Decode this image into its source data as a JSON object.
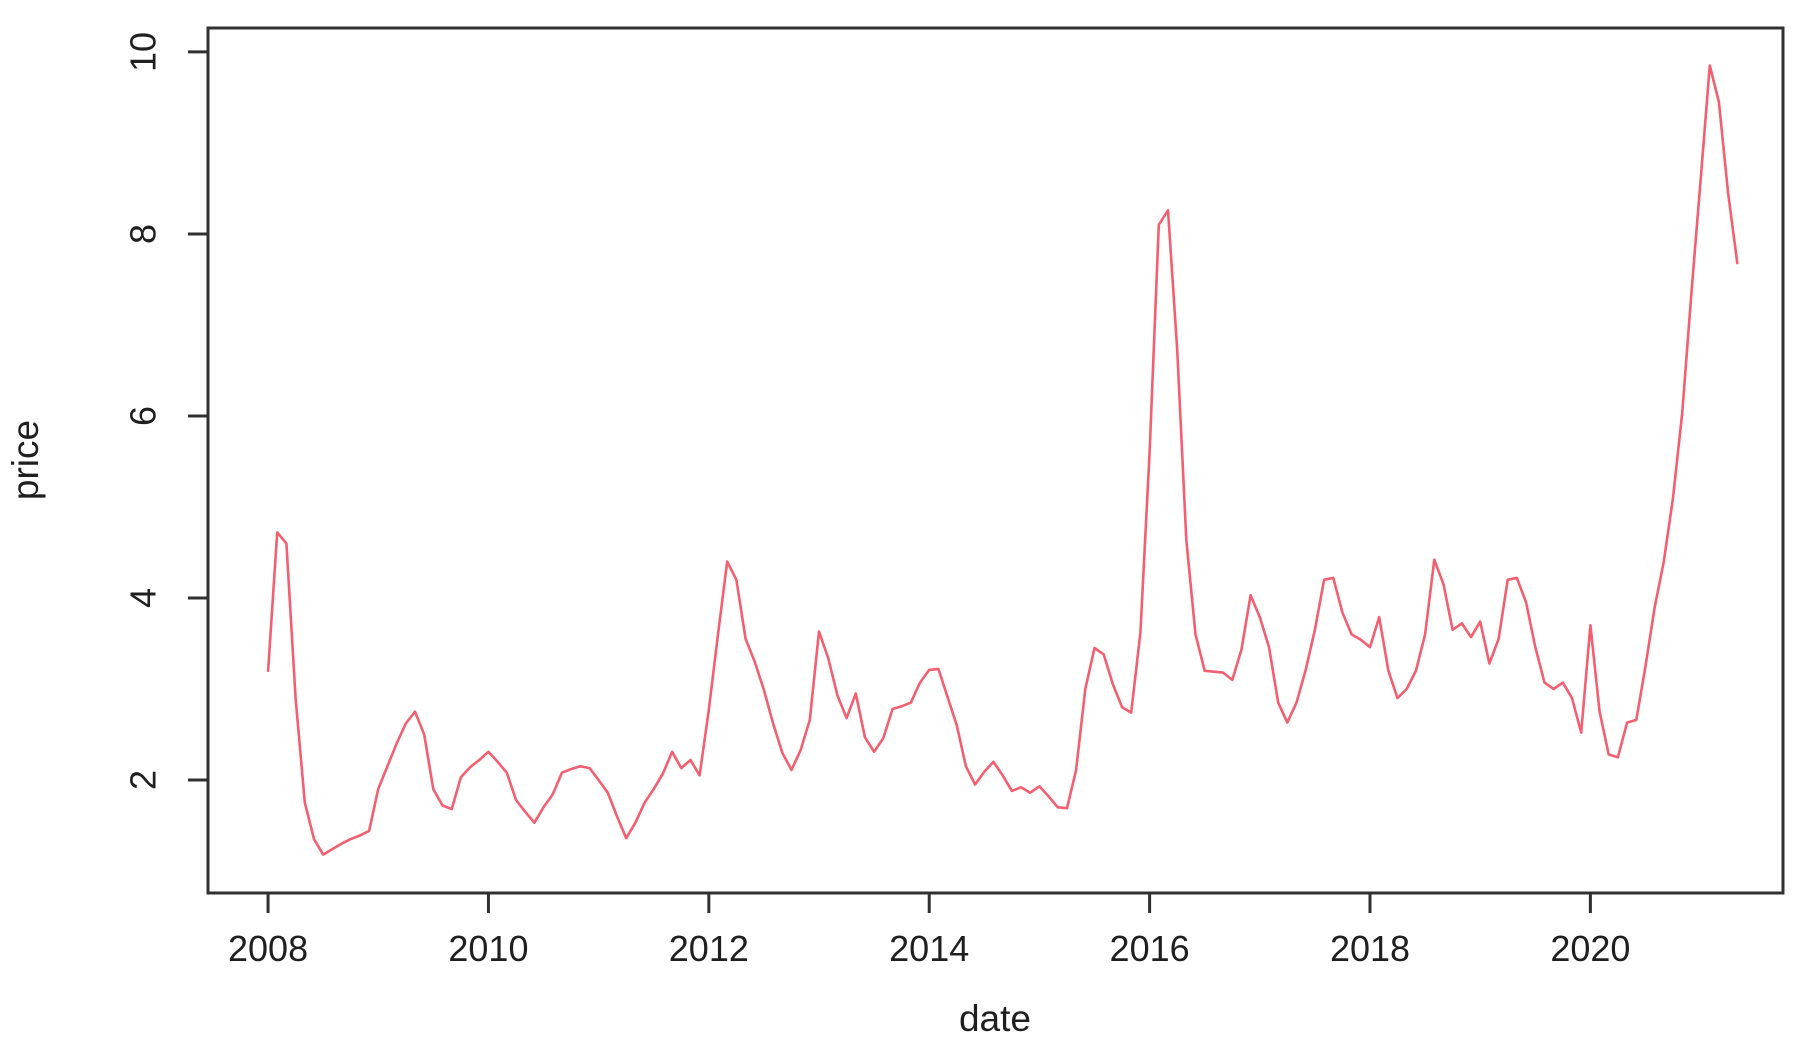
{
  "figure": {
    "xlabel": "date",
    "ylabel": "price"
  },
  "colors": {
    "line": "#f25f70",
    "axis": "#303030",
    "background": "#ffffff"
  },
  "chart_data": {
    "type": "line",
    "title": "",
    "xlabel": "date",
    "ylabel": "price",
    "grid": false,
    "legend": null,
    "x_ticks": [
      2008,
      2010,
      2012,
      2014,
      2016,
      2018,
      2020
    ],
    "y_ticks": [
      2,
      4,
      6,
      8,
      10
    ],
    "xlim": [
      2007.455,
      2021.748
    ],
    "ylim": [
      0.758,
      10.263
    ],
    "series": [
      {
        "name": "price",
        "color": "#f25f70",
        "frequency": "monthly",
        "start_year": 2008,
        "start_month": 1,
        "end_year": 2021,
        "end_month": 5,
        "values": [
          3.2,
          4.72,
          4.6,
          2.9,
          1.75,
          1.35,
          1.18,
          1.24,
          1.3,
          1.35,
          1.39,
          1.44,
          1.9,
          2.15,
          2.4,
          2.62,
          2.75,
          2.5,
          1.9,
          1.72,
          1.68,
          2.03,
          2.14,
          2.22,
          2.31,
          2.2,
          2.08,
          1.78,
          1.65,
          1.53,
          1.7,
          1.84,
          2.08,
          2.12,
          2.15,
          2.13,
          2.0,
          1.86,
          1.6,
          1.36,
          1.53,
          1.75,
          1.9,
          2.07,
          2.31,
          2.13,
          2.22,
          2.05,
          2.77,
          3.6,
          4.4,
          4.2,
          3.55,
          3.3,
          2.99,
          2.62,
          2.3,
          2.11,
          2.33,
          2.66,
          3.63,
          3.34,
          2.93,
          2.68,
          2.95,
          2.47,
          2.31,
          2.46,
          2.78,
          2.81,
          2.85,
          3.07,
          3.21,
          3.22,
          2.91,
          2.6,
          2.15,
          1.95,
          2.09,
          2.2,
          2.05,
          1.88,
          1.92,
          1.86,
          1.93,
          1.82,
          1.7,
          1.69,
          2.11,
          3.0,
          3.45,
          3.38,
          3.05,
          2.8,
          2.74,
          3.62,
          5.6,
          8.1,
          8.26,
          6.73,
          4.64,
          3.6,
          3.2,
          3.19,
          3.18,
          3.1,
          3.43,
          4.03,
          3.79,
          3.46,
          2.85,
          2.63,
          2.85,
          3.21,
          3.65,
          4.2,
          4.22,
          3.84,
          3.6,
          3.54,
          3.46,
          3.79,
          3.2,
          2.9,
          3.0,
          3.2,
          3.6,
          4.42,
          4.15,
          3.65,
          3.72,
          3.57,
          3.74,
          3.28,
          3.55,
          4.2,
          4.22,
          3.95,
          3.46,
          3.07,
          3.0,
          3.07,
          2.9,
          2.52,
          3.7,
          2.75,
          2.28,
          2.25,
          2.63,
          2.66,
          3.25,
          3.9,
          4.4,
          5.1,
          6.03,
          7.35,
          8.59,
          9.85,
          9.45,
          8.45,
          7.68
        ]
      }
    ]
  }
}
